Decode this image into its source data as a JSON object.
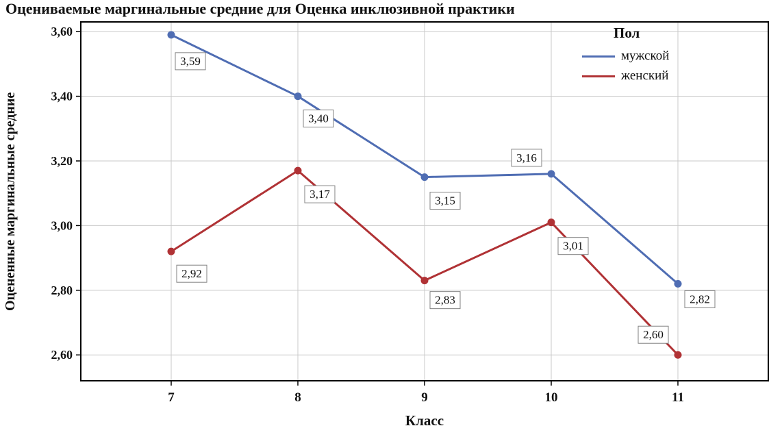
{
  "chart_data": {
    "type": "line",
    "title": "Оцениваемые маргинальные средние для Оценка инклюзивной практики",
    "xlabel": "Класс",
    "ylabel": "Оцененные маргинальные средние",
    "legend_title": "Пол",
    "legend_position": "top-right-inside",
    "grid": true,
    "categories": [
      "7",
      "8",
      "9",
      "10",
      "11"
    ],
    "ylim": [
      2.52,
      3.63
    ],
    "y_tick_values": [
      2.6,
      2.8,
      3.0,
      3.2,
      3.4,
      3.6
    ],
    "y_tick_labels": [
      "2,60",
      "2,80",
      "3,00",
      "3,20",
      "3,40",
      "3,60"
    ],
    "series": [
      {
        "name": "мужской",
        "color": "#4f6db3",
        "values": [
          3.59,
          3.4,
          3.15,
          3.16,
          2.82
        ],
        "labels": [
          "3,59",
          "3,40",
          "3,15",
          "3,16",
          "2,82"
        ]
      },
      {
        "name": "женский",
        "color": "#b03235",
        "values": [
          2.92,
          3.17,
          2.83,
          3.01,
          2.6
        ],
        "labels": [
          "2,92",
          "3,17",
          "2,83",
          "3,01",
          "2,60"
        ]
      }
    ],
    "colors": {
      "grid": "#c9c9c9",
      "frame": "#000000",
      "label_box_border": "#808080",
      "background": "#ffffff"
    }
  }
}
